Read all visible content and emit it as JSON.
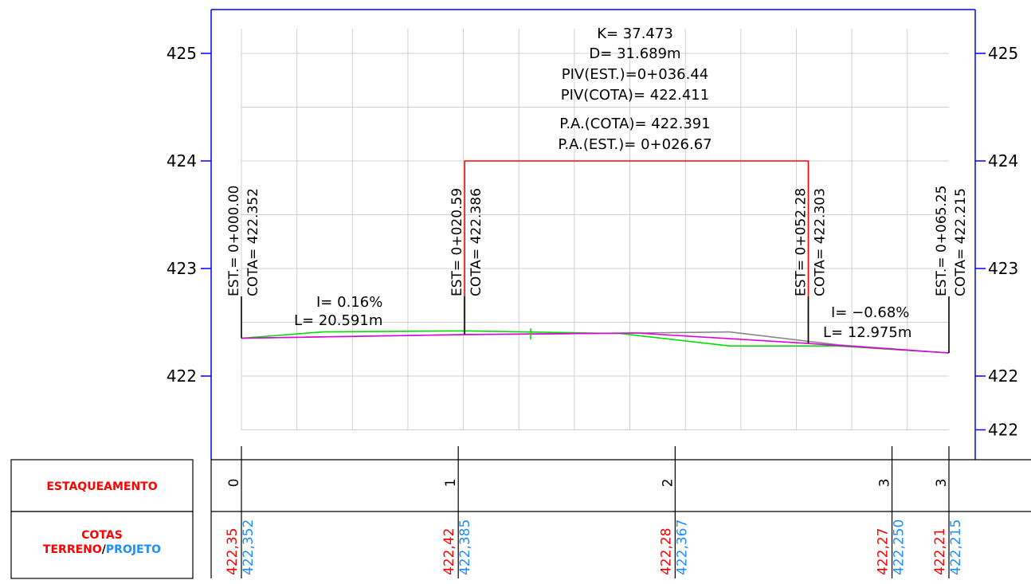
{
  "chart_data": {
    "type": "line",
    "x_range": [
      0,
      65.25
    ],
    "y_range": [
      421.5,
      425.4
    ],
    "y_ticks_left": [
      "425",
      "424",
      "423",
      "422"
    ],
    "y_ticks_right": [
      "425",
      "424",
      "423",
      "422",
      "422"
    ],
    "y_tick_values_left": [
      425,
      424,
      423,
      422
    ],
    "y_tick_values_right": [
      425,
      424,
      423,
      422,
      421.5
    ],
    "grid": true,
    "series": [
      {
        "color": "#00e000",
        "points": [
          [
            0,
            422.352
          ],
          [
            7.5,
            422.41
          ],
          [
            20.59,
            422.42
          ],
          [
            35,
            422.395
          ],
          [
            45,
            422.28
          ],
          [
            55,
            422.28
          ],
          [
            65.25,
            422.215
          ]
        ]
      },
      {
        "color": "#888888",
        "points": [
          [
            0,
            422.352
          ],
          [
            20.59,
            422.385
          ],
          [
            36.44,
            422.4
          ],
          [
            45,
            422.41
          ],
          [
            55,
            422.29
          ],
          [
            65.25,
            422.215
          ]
        ]
      },
      {
        "color": "#e000e0",
        "points": [
          [
            0,
            422.352
          ],
          [
            20.59,
            422.386
          ],
          [
            36.44,
            422.4
          ],
          [
            52.28,
            422.303
          ],
          [
            65.25,
            422.215
          ]
        ]
      }
    ],
    "curve_box": {
      "color": "#ff0000",
      "x0": 20.59,
      "x1": 52.28,
      "y_bottom": 422.386,
      "y_bottom_right": 422.303,
      "y_top": 424.0
    },
    "piv_marker": {
      "x": 26.67,
      "y": 422.391
    },
    "annotations": {
      "curve": {
        "k": "K= 37.473",
        "d": "D= 31.689m",
        "piv_est": "PIV(EST.)=0+036.44",
        "piv_cota": "PIV(COTA)= 422.411",
        "pa_cota": "P.A.(COTA)= 422.391",
        "pa_est": "P.A.(EST.)= 0+026.67"
      },
      "slope_left": {
        "i": "I= 0.16%",
        "l": "L= 20.591m"
      },
      "slope_right": {
        "i": "I= −0.68%",
        "l": "L= 12.975m"
      },
      "vertical_labels": [
        {
          "est": "EST.= 0+000.00",
          "cota": "COTA= 422.352",
          "x": 0,
          "y": 422.352
        },
        {
          "est": "EST= 0+020.59",
          "cota": "COTA= 422.386",
          "x": 20.59,
          "y": 422.386
        },
        {
          "est": "EST= 0+052.28",
          "cota": "COTA= 422.303",
          "x": 52.28,
          "y": 422.303
        },
        {
          "est": "EST.= 0+065.25",
          "cota": "COTA= 422.215",
          "x": 65.25,
          "y": 422.215
        }
      ]
    }
  },
  "table": {
    "row1_label": "ESTAQUEAMENTO",
    "row2_label_1": "COTAS",
    "row2_label_2a": "TERRENO",
    "row2_label_sep": "/",
    "row2_label_2b": "PROJETO",
    "stations": [
      {
        "x": 0,
        "label": "0"
      },
      {
        "x": 20,
        "label": "1"
      },
      {
        "x": 40,
        "label": "2"
      },
      {
        "x": 60,
        "label": "3"
      },
      {
        "x": 65.25,
        "label": "3"
      }
    ],
    "cotas": [
      {
        "x": 0,
        "terreno": "422,35",
        "projeto": "422,352"
      },
      {
        "x": 20,
        "terreno": "422,42",
        "projeto": "422,385"
      },
      {
        "x": 40,
        "terreno": "422,28",
        "projeto": "422,367"
      },
      {
        "x": 60,
        "terreno": "422,27",
        "projeto": "422,250"
      },
      {
        "x": 65.25,
        "terreno": "422,21",
        "projeto": "422,215"
      }
    ]
  },
  "colors": {
    "frame": "#0000ff",
    "grid": "#d0d0d0",
    "terreno": "#ff0000",
    "projeto": "#1e8fff"
  }
}
